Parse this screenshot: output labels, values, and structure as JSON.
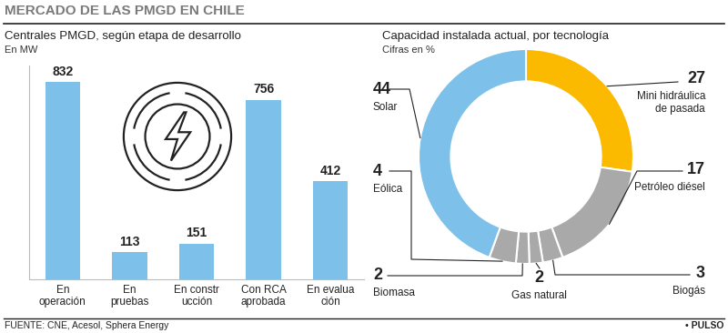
{
  "title": "MERCADO DE LAS PMGD EN CHILE",
  "source": "FUENTE: CNE, Acesol, Sphera Energy",
  "brand": "• PULSO",
  "chart_data": [
    {
      "type": "bar",
      "title": "Centrales PMGD, según etapa de desarrollo",
      "subtitle": "En MW",
      "categories": [
        "En operación",
        "En pruebas",
        "En construcción",
        "Con RCA aprobada",
        "En evaluación"
      ],
      "values": [
        832,
        113,
        151,
        756,
        412
      ],
      "color": "#7dc1ea",
      "ylim": [
        0,
        900
      ],
      "data_labels": true,
      "tick_labels": "x"
    },
    {
      "type": "pie",
      "title": "Capacidad instalada actual, por tecnología",
      "subtitle": "Cifras en %",
      "categories": [
        "Mini hidráulica de pasada",
        "Petróleo diésel",
        "Biogás",
        "Gas natural",
        "Biomasa",
        "Eólica",
        "Solar"
      ],
      "values": [
        27,
        17,
        3,
        2,
        2,
        4,
        44
      ],
      "colors": [
        "#fbb900",
        "#a9a9a9",
        "#a9a9a9",
        "#a9a9a9",
        "#a9a9a9",
        "#a9a9a9",
        "#7dc1ea"
      ],
      "data_labels": true
    }
  ]
}
